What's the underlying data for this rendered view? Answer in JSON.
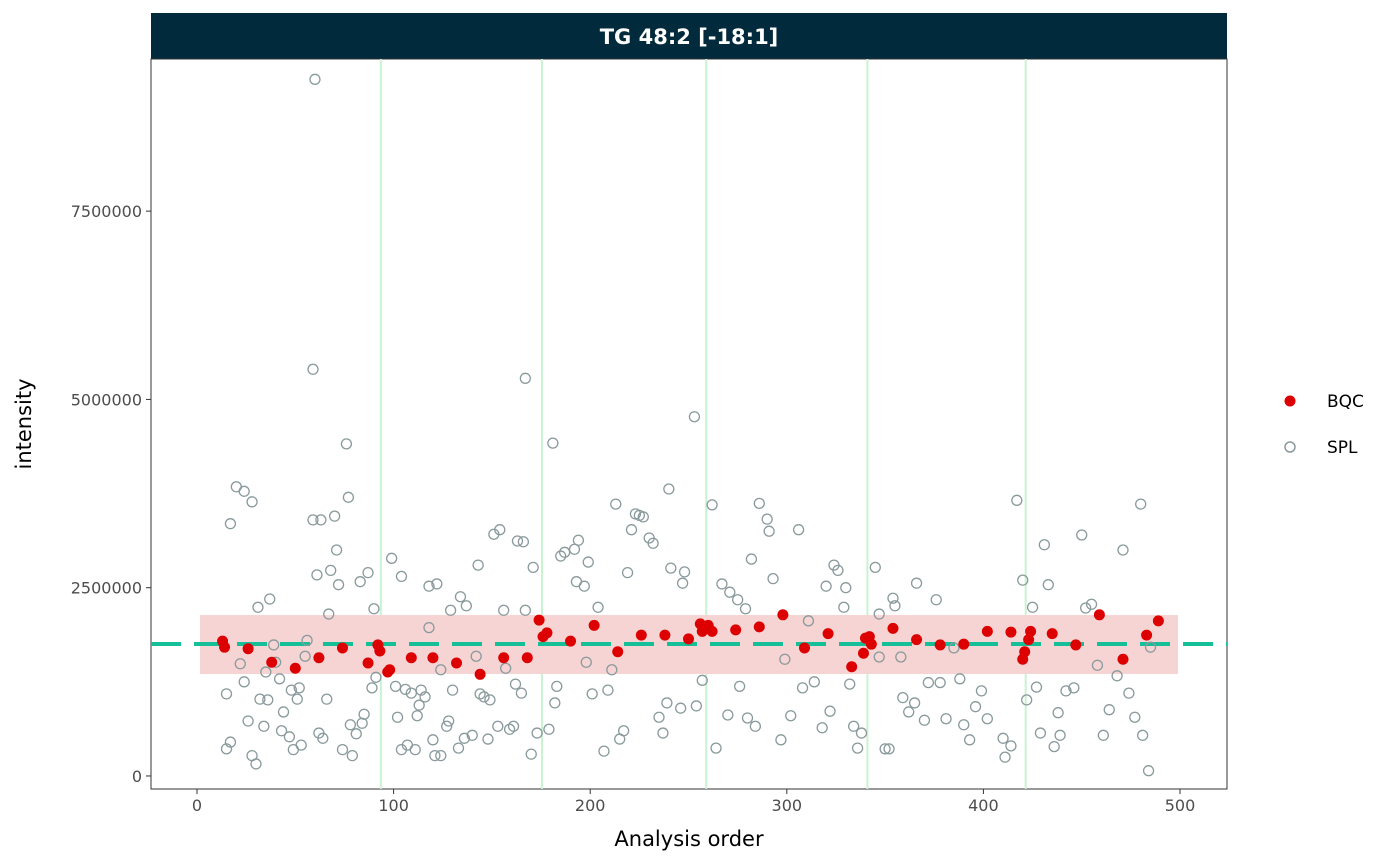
{
  "chart_data": {
    "type": "scatter",
    "title": "TG 48:2 [-18:1]",
    "xlabel": "Analysis order",
    "ylabel": "intensity",
    "xlim": [
      -23.4,
      523.9
    ],
    "ylim": [
      -173000,
      9520000
    ],
    "x_ticks": [
      0,
      100,
      200,
      300,
      400,
      500
    ],
    "x_tick_labels": [
      "0",
      "100",
      "200",
      "300",
      "400",
      "500"
    ],
    "y_ticks": [
      0,
      2500000,
      5000000,
      7500000
    ],
    "y_tick_labels": [
      "0",
      "2500000",
      "5000000",
      "7500000"
    ],
    "grid": false,
    "legend_position": "right",
    "batch_boundaries": [
      93.5,
      175.5,
      259,
      341,
      421.5
    ],
    "reference_line": 1752000,
    "reference_band": {
      "x": [
        1.5,
        499
      ],
      "y": [
        1354000,
        2137000
      ]
    },
    "colors": {
      "strip": "#012a3c",
      "BQC": "#dd0000",
      "SPL": "#8a9a9c",
      "reference_line": "#15bf98",
      "band": "#f7d4d4",
      "batch_line": "#c9f2d2"
    },
    "series": [
      {
        "name": "BQC",
        "marker": "filled-circle",
        "points": [
          [
            13,
            1790000
          ],
          [
            14,
            1710000
          ],
          [
            26,
            1690000
          ],
          [
            38,
            1510000
          ],
          [
            50,
            1430000
          ],
          [
            62,
            1570000
          ],
          [
            74,
            1700000
          ],
          [
            87,
            1500000
          ],
          [
            92,
            1740000
          ],
          [
            93,
            1660000
          ],
          [
            97,
            1380000
          ],
          [
            98,
            1410000
          ],
          [
            109,
            1570000
          ],
          [
            120,
            1570000
          ],
          [
            132,
            1500000
          ],
          [
            144,
            1350000
          ],
          [
            156,
            1570000
          ],
          [
            168,
            1570000
          ],
          [
            174,
            2070000
          ],
          [
            176,
            1850000
          ],
          [
            178,
            1900000
          ],
          [
            190,
            1790000
          ],
          [
            202,
            2000000
          ],
          [
            214,
            1650000
          ],
          [
            226,
            1870000
          ],
          [
            238,
            1870000
          ],
          [
            250,
            1820000
          ],
          [
            256,
            2020000
          ],
          [
            257,
            1920000
          ],
          [
            260,
            2000000
          ],
          [
            262,
            1920000
          ],
          [
            274,
            1940000
          ],
          [
            286,
            1980000
          ],
          [
            298,
            2140000
          ],
          [
            309,
            1700000
          ],
          [
            321,
            1890000
          ],
          [
            333,
            1450000
          ],
          [
            339,
            1630000
          ],
          [
            340,
            1830000
          ],
          [
            342,
            1850000
          ],
          [
            343,
            1750000
          ],
          [
            354,
            1960000
          ],
          [
            366,
            1810000
          ],
          [
            378,
            1740000
          ],
          [
            390,
            1750000
          ],
          [
            402,
            1920000
          ],
          [
            414,
            1910000
          ],
          [
            420,
            1550000
          ],
          [
            421,
            1650000
          ],
          [
            423,
            1810000
          ],
          [
            424,
            1920000
          ],
          [
            435,
            1890000
          ],
          [
            447,
            1740000
          ],
          [
            459,
            2140000
          ],
          [
            471,
            1550000
          ],
          [
            483,
            1870000
          ],
          [
            489,
            2060000
          ]
        ]
      },
      {
        "name": "SPL",
        "marker": "open-circle",
        "points": [
          [
            60,
            9250000
          ],
          [
            59,
            5400000
          ],
          [
            20,
            3840000
          ],
          [
            24,
            3780000
          ],
          [
            28,
            3640000
          ],
          [
            17,
            3350000
          ],
          [
            15,
            1090000
          ],
          [
            17,
            450000
          ],
          [
            15,
            360000
          ],
          [
            22,
            1490000
          ],
          [
            24,
            1250000
          ],
          [
            26,
            730000
          ],
          [
            28,
            270000
          ],
          [
            30,
            160000
          ],
          [
            31,
            2240000
          ],
          [
            32,
            1020000
          ],
          [
            34,
            660000
          ],
          [
            35,
            1380000
          ],
          [
            36,
            1010000
          ],
          [
            37,
            2350000
          ],
          [
            39,
            1740000
          ],
          [
            40,
            1510000
          ],
          [
            42,
            1290000
          ],
          [
            43,
            600000
          ],
          [
            44,
            850000
          ],
          [
            47,
            520000
          ],
          [
            48,
            1140000
          ],
          [
            49,
            350000
          ],
          [
            51,
            1020000
          ],
          [
            52,
            1170000
          ],
          [
            53,
            410000
          ],
          [
            55,
            1590000
          ],
          [
            56,
            1800000
          ],
          [
            59,
            3400000
          ],
          [
            61,
            2670000
          ],
          [
            62,
            570000
          ],
          [
            63,
            3400000
          ],
          [
            64,
            500000
          ],
          [
            66,
            1020000
          ],
          [
            67,
            2150000
          ],
          [
            68,
            2730000
          ],
          [
            70,
            3450000
          ],
          [
            71,
            3000000
          ],
          [
            72,
            2540000
          ],
          [
            74,
            350000
          ],
          [
            76,
            4410000
          ],
          [
            77,
            3700000
          ],
          [
            78,
            680000
          ],
          [
            79,
            270000
          ],
          [
            81,
            560000
          ],
          [
            83,
            2580000
          ],
          [
            84,
            700000
          ],
          [
            85,
            820000
          ],
          [
            87,
            2700000
          ],
          [
            90,
            2220000
          ],
          [
            89,
            1170000
          ],
          [
            91,
            1310000
          ],
          [
            99,
            2890000
          ],
          [
            101,
            1190000
          ],
          [
            102,
            780000
          ],
          [
            104,
            2650000
          ],
          [
            104,
            350000
          ],
          [
            106,
            1150000
          ],
          [
            107,
            410000
          ],
          [
            109,
            1100000
          ],
          [
            111,
            350000
          ],
          [
            112,
            800000
          ],
          [
            113,
            940000
          ],
          [
            114,
            1140000
          ],
          [
            116,
            1050000
          ],
          [
            118,
            1970000
          ],
          [
            118,
            2520000
          ],
          [
            120,
            480000
          ],
          [
            121,
            270000
          ],
          [
            122,
            2550000
          ],
          [
            124,
            1410000
          ],
          [
            124,
            270000
          ],
          [
            127,
            660000
          ],
          [
            128,
            730000
          ],
          [
            129,
            2200000
          ],
          [
            130,
            1140000
          ],
          [
            133,
            370000
          ],
          [
            134,
            2380000
          ],
          [
            136,
            500000
          ],
          [
            137,
            2260000
          ],
          [
            140,
            540000
          ],
          [
            142,
            1590000
          ],
          [
            143,
            2800000
          ],
          [
            144,
            1090000
          ],
          [
            146,
            1050000
          ],
          [
            148,
            490000
          ],
          [
            149,
            1010000
          ],
          [
            151,
            3210000
          ],
          [
            153,
            660000
          ],
          [
            154,
            3270000
          ],
          [
            156,
            2200000
          ],
          [
            157,
            1430000
          ],
          [
            159,
            620000
          ],
          [
            161,
            660000
          ],
          [
            162,
            1220000
          ],
          [
            163,
            3120000
          ],
          [
            165,
            1100000
          ],
          [
            166,
            3110000
          ],
          [
            167,
            2200000
          ],
          [
            167,
            5280000
          ],
          [
            170,
            290000
          ],
          [
            171,
            2770000
          ],
          [
            173,
            570000
          ],
          [
            179,
            620000
          ],
          [
            181,
            4420000
          ],
          [
            183,
            1190000
          ],
          [
            182,
            970000
          ],
          [
            185,
            2920000
          ],
          [
            187,
            2970000
          ],
          [
            192,
            3010000
          ],
          [
            194,
            3130000
          ],
          [
            193,
            2580000
          ],
          [
            197,
            2520000
          ],
          [
            199,
            2840000
          ],
          [
            198,
            1510000
          ],
          [
            201,
            1090000
          ],
          [
            204,
            2240000
          ],
          [
            207,
            330000
          ],
          [
            209,
            1140000
          ],
          [
            211,
            1410000
          ],
          [
            213,
            3610000
          ],
          [
            215,
            490000
          ],
          [
            217,
            600000
          ],
          [
            219,
            2700000
          ],
          [
            221,
            3270000
          ],
          [
            223,
            3480000
          ],
          [
            225,
            3460000
          ],
          [
            227,
            3440000
          ],
          [
            230,
            3160000
          ],
          [
            232,
            3090000
          ],
          [
            235,
            780000
          ],
          [
            237,
            570000
          ],
          [
            239,
            970000
          ],
          [
            240,
            3810000
          ],
          [
            241,
            2760000
          ],
          [
            246,
            900000
          ],
          [
            247,
            2560000
          ],
          [
            248,
            2710000
          ],
          [
            253,
            4770000
          ],
          [
            254,
            930000
          ],
          [
            257,
            1270000
          ],
          [
            262,
            3600000
          ],
          [
            264,
            370000
          ],
          [
            267,
            2550000
          ],
          [
            270,
            810000
          ],
          [
            271,
            2440000
          ],
          [
            275,
            2340000
          ],
          [
            276,
            1190000
          ],
          [
            279,
            2220000
          ],
          [
            280,
            770000
          ],
          [
            282,
            2880000
          ],
          [
            284,
            660000
          ],
          [
            286,
            3620000
          ],
          [
            290,
            3410000
          ],
          [
            291,
            3250000
          ],
          [
            293,
            2620000
          ],
          [
            297,
            480000
          ],
          [
            299,
            1550000
          ],
          [
            302,
            800000
          ],
          [
            306,
            3270000
          ],
          [
            308,
            1170000
          ],
          [
            311,
            2060000
          ],
          [
            314,
            1250000
          ],
          [
            318,
            640000
          ],
          [
            320,
            2520000
          ],
          [
            322,
            860000
          ],
          [
            324,
            2800000
          ],
          [
            326,
            2730000
          ],
          [
            329,
            2240000
          ],
          [
            330,
            2500000
          ],
          [
            332,
            1220000
          ],
          [
            334,
            660000
          ],
          [
            336,
            370000
          ],
          [
            338,
            570000
          ],
          [
            345,
            2770000
          ],
          [
            347,
            2150000
          ],
          [
            347,
            1580000
          ],
          [
            350,
            360000
          ],
          [
            352,
            360000
          ],
          [
            354,
            2360000
          ],
          [
            355,
            2260000
          ],
          [
            358,
            1580000
          ],
          [
            359,
            1040000
          ],
          [
            362,
            850000
          ],
          [
            365,
            970000
          ],
          [
            366,
            2560000
          ],
          [
            370,
            740000
          ],
          [
            372,
            1240000
          ],
          [
            376,
            2340000
          ],
          [
            378,
            1240000
          ],
          [
            381,
            760000
          ],
          [
            385,
            1700000
          ],
          [
            388,
            1290000
          ],
          [
            390,
            680000
          ],
          [
            393,
            480000
          ],
          [
            396,
            920000
          ],
          [
            399,
            1130000
          ],
          [
            402,
            760000
          ],
          [
            410,
            500000
          ],
          [
            411,
            250000
          ],
          [
            414,
            400000
          ],
          [
            417,
            3660000
          ],
          [
            420,
            2600000
          ],
          [
            422,
            1010000
          ],
          [
            425,
            2240000
          ],
          [
            427,
            1180000
          ],
          [
            429,
            570000
          ],
          [
            431,
            3070000
          ],
          [
            433,
            2540000
          ],
          [
            436,
            390000
          ],
          [
            438,
            840000
          ],
          [
            439,
            540000
          ],
          [
            442,
            1130000
          ],
          [
            446,
            1170000
          ],
          [
            450,
            3200000
          ],
          [
            452,
            2230000
          ],
          [
            455,
            2280000
          ],
          [
            458,
            1470000
          ],
          [
            461,
            540000
          ],
          [
            464,
            880000
          ],
          [
            468,
            1330000
          ],
          [
            471,
            3000000
          ],
          [
            474,
            1100000
          ],
          [
            477,
            780000
          ],
          [
            481,
            540000
          ],
          [
            480,
            3610000
          ],
          [
            484,
            70000
          ],
          [
            485,
            1710000
          ]
        ]
      }
    ]
  }
}
